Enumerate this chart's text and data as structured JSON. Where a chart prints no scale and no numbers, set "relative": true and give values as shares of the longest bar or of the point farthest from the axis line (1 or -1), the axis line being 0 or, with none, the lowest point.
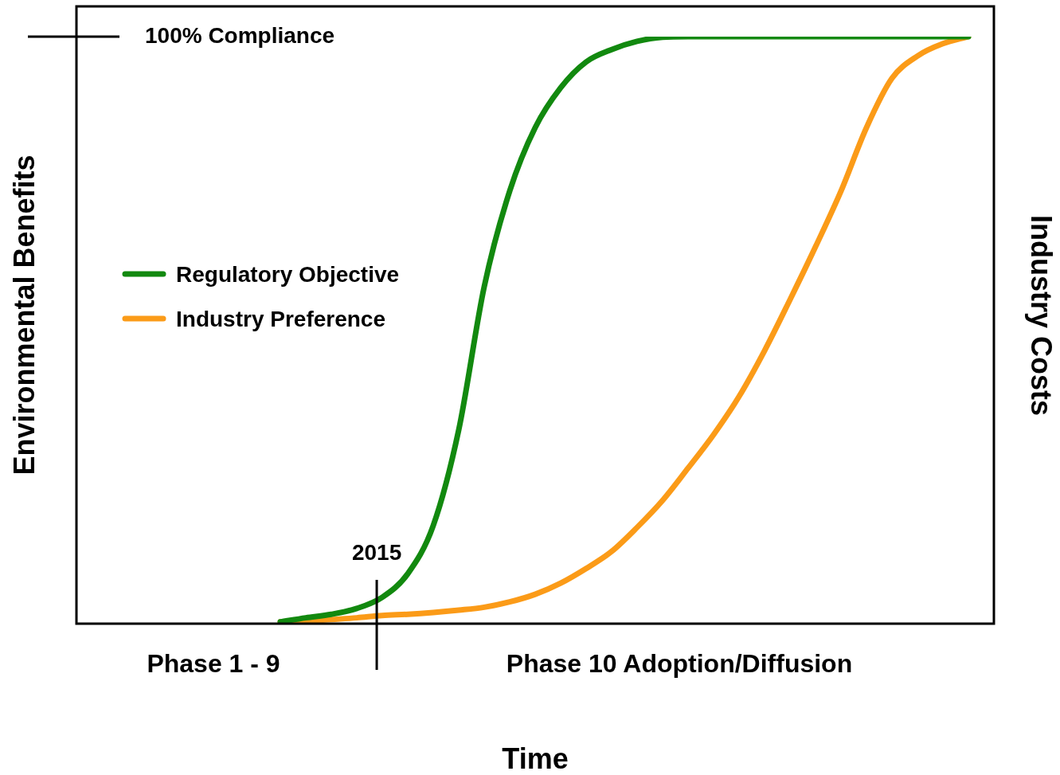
{
  "chart_data": {
    "type": "line",
    "relative": true,
    "xlabel": "Time",
    "ylabel": "Environmental Benefits",
    "y2label": "Industry Costs",
    "legend": "left",
    "marker": "none",
    "line_style": "solid",
    "categories": [
      null,
      null,
      null,
      null,
      null,
      null,
      null,
      null,
      null,
      null,
      null,
      null,
      null,
      null,
      null,
      null,
      null,
      null,
      null,
      null,
      null,
      null,
      null,
      null,
      null,
      null,
      null,
      null,
      null,
      null,
      null,
      null,
      null,
      null,
      null,
      null,
      null
    ],
    "series": [
      {
        "name": "Regulatory Objective",
        "color": "#12890f",
        "values": [
          null,
          null,
          null,
          null,
          null,
          null,
          null,
          null,
          0.003,
          0.01,
          0.016,
          0.026,
          0.045,
          0.085,
          0.167,
          0.33,
          0.574,
          0.737,
          0.845,
          0.913,
          0.957,
          0.978,
          0.992,
          0.999,
          1,
          1,
          1,
          1,
          1,
          1,
          1,
          1,
          1,
          1,
          1,
          1,
          null
        ]
      },
      {
        "name": "Industry Preference",
        "color": "#fb9b18",
        "values": [
          null,
          null,
          null,
          null,
          null,
          null,
          null,
          null,
          0.003,
          0.004,
          0.007,
          0.01,
          0.014,
          0.016,
          0.019,
          0.023,
          0.028,
          0.037,
          0.05,
          0.069,
          0.094,
          0.123,
          0.164,
          0.21,
          0.265,
          0.322,
          0.387,
          0.465,
          0.552,
          0.642,
          0.737,
          0.845,
          0.929,
          0.967,
          0.988,
          1,
          null
        ]
      }
    ],
    "annotations": [
      "100% Compliance",
      "2015",
      "Phase 1 - 9",
      "Phase 10 Adoption/Diffusion"
    ]
  }
}
